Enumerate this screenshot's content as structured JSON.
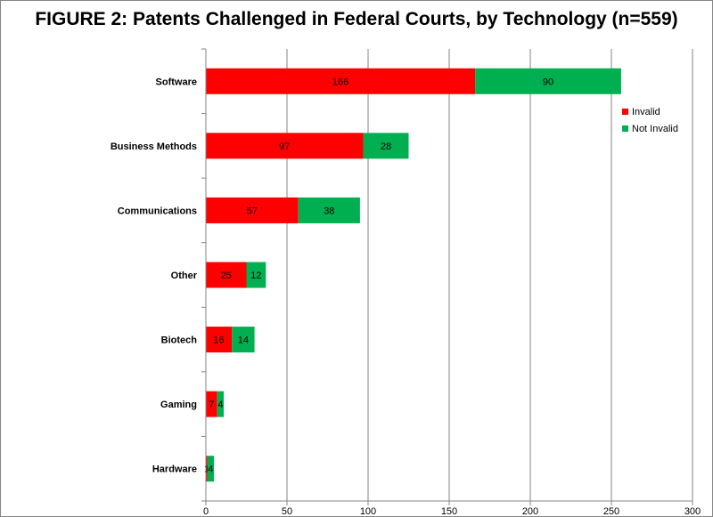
{
  "chart_data": {
    "type": "bar",
    "orientation": "horizontal",
    "stacked": true,
    "title": "FIGURE 2: Patents Challenged in Federal Courts, by Technology (n=559)",
    "categories": [
      "Software",
      "Business Methods",
      "Communications",
      "Other",
      "Biotech",
      "Gaming",
      "Hardware"
    ],
    "series": [
      {
        "name": "Invalid",
        "values": [
          166,
          97,
          57,
          25,
          16,
          7,
          1
        ],
        "labels": [
          "166",
          "97",
          "57",
          "25",
          "16",
          "7",
          "1"
        ],
        "color": "#ff0000"
      },
      {
        "name": "Not Invalid",
        "values": [
          90,
          28,
          38,
          12,
          14,
          4,
          4
        ],
        "labels": [
          "90",
          "28",
          "38",
          "12",
          "14",
          "4",
          "4"
        ],
        "color": "#00b050"
      }
    ],
    "xlim": [
      0,
      300
    ],
    "xticks": [
      0,
      50,
      100,
      150,
      200,
      250,
      300
    ],
    "xtick_labels": [
      "0",
      "50",
      "100",
      "150",
      "200",
      "250",
      "300"
    ],
    "grid": "vertical",
    "legend_position": "right"
  }
}
